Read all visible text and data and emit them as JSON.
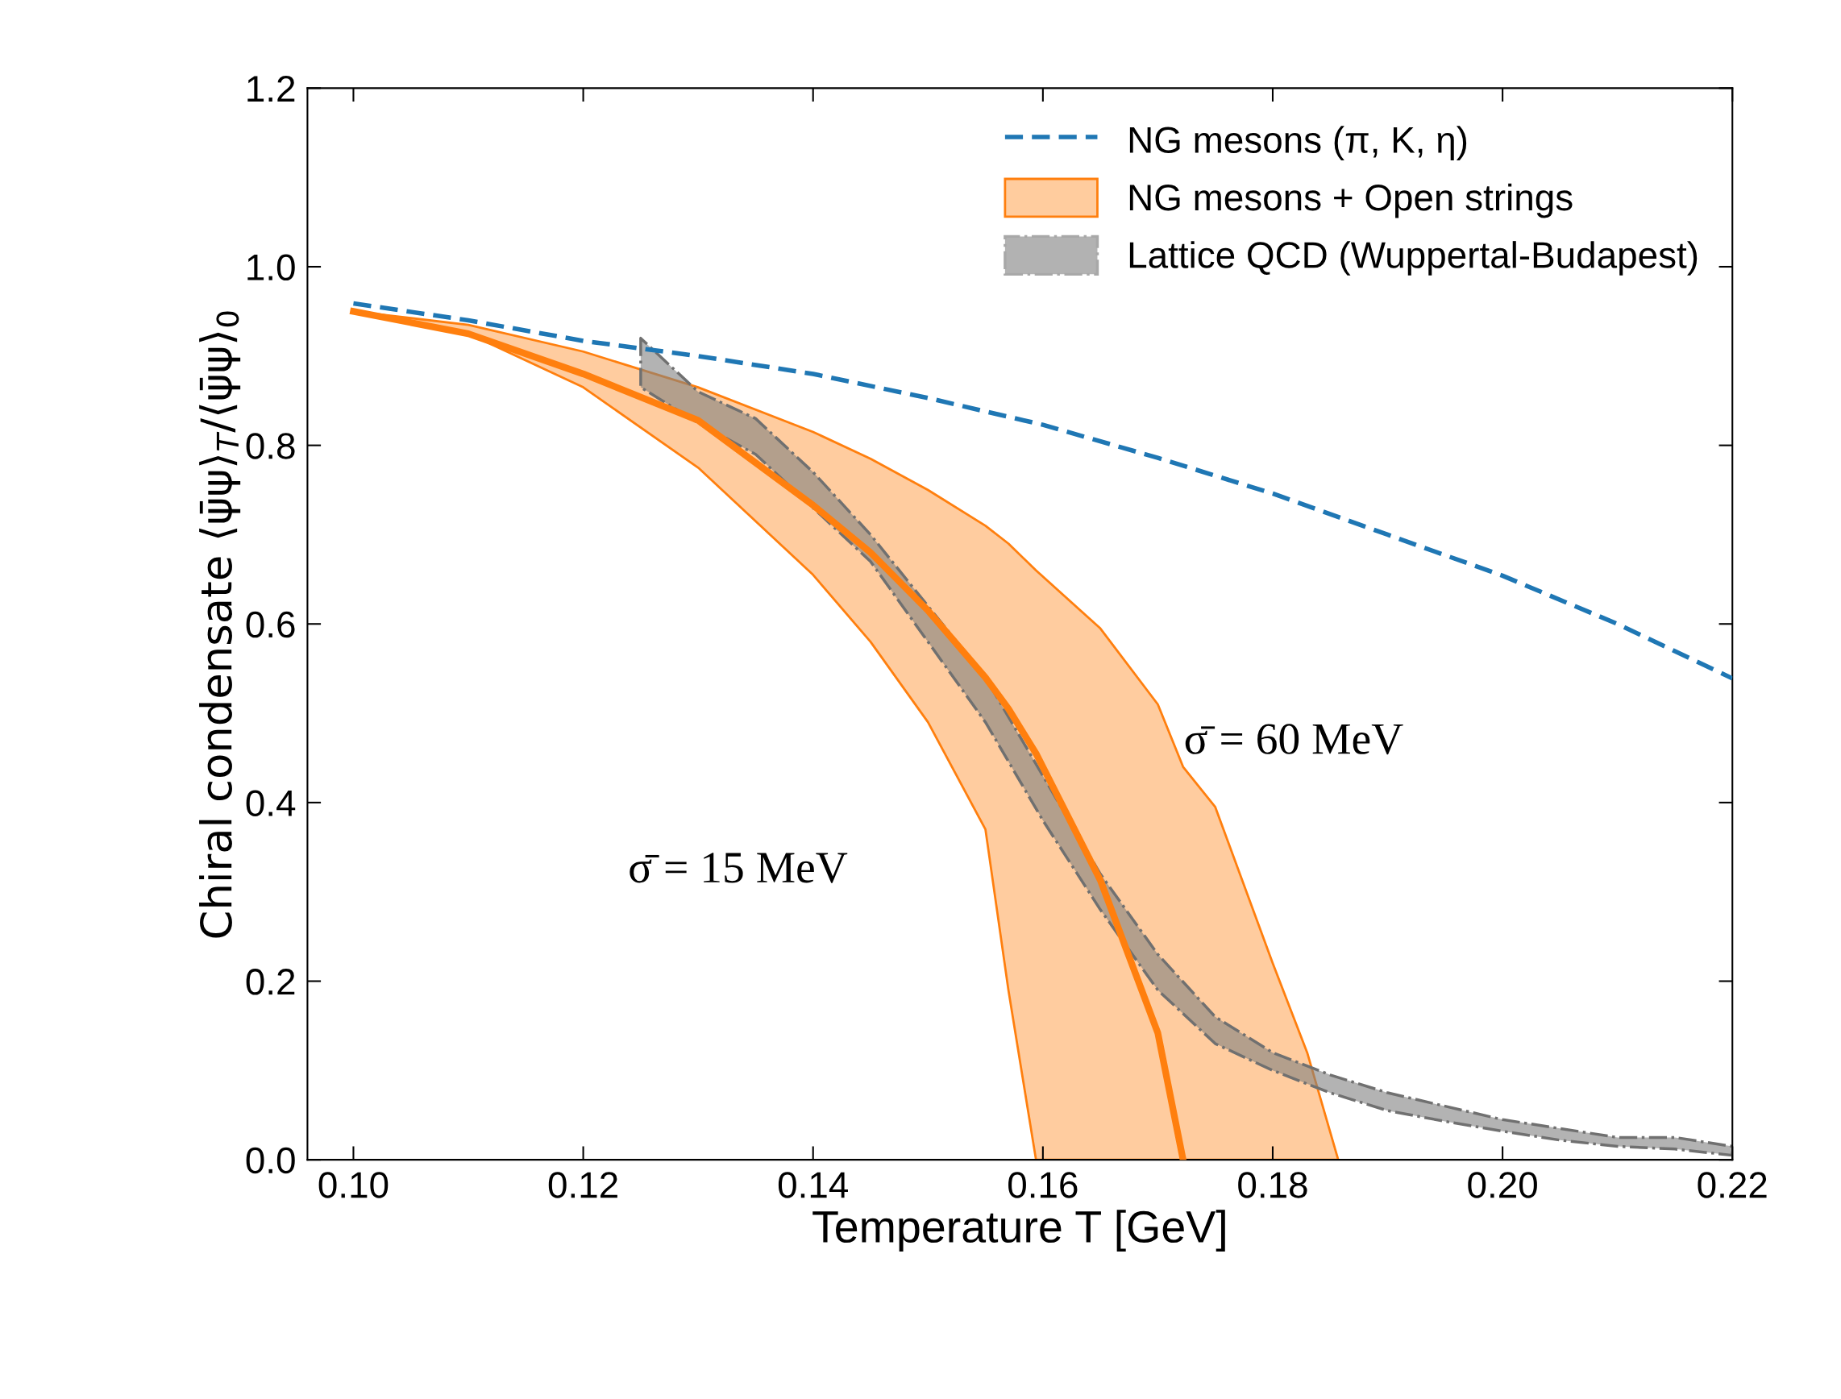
{
  "chart_data": {
    "type": "line",
    "xlabel": "Temperature T [GeV]",
    "ylabel": "Chiral condensate ⟨ψ̄ψ⟩$_{T}$/⟨ψ̄ψ⟩$_{0}$",
    "xlim": [
      0.096,
      0.22
    ],
    "xticks": [
      {
        "value": 0.1,
        "label": "0.10"
      },
      {
        "value": 0.12,
        "label": "0.12"
      },
      {
        "value": 0.14,
        "label": "0.14"
      },
      {
        "value": 0.16,
        "label": "0.16"
      },
      {
        "value": 0.18,
        "label": "0.18"
      },
      {
        "value": 0.2,
        "label": "0.20"
      },
      {
        "value": 0.22,
        "label": "0.22"
      }
    ],
    "ylim": [
      0,
      1.2
    ],
    "yticks": [
      {
        "value": 0,
        "label": "0.0"
      },
      {
        "value": 0.2,
        "label": "0.2"
      },
      {
        "value": 0.4,
        "label": "0.4"
      },
      {
        "value": 0.6,
        "label": "0.6"
      },
      {
        "value": 0.8,
        "label": "0.8"
      },
      {
        "value": 1.0,
        "label": "1.0"
      },
      {
        "value": 1.2,
        "label": "1.2"
      }
    ],
    "grid": false,
    "legend": "top right",
    "series": [
      {
        "name": "NG mesons (π, K, η)",
        "color": "#1f77b4",
        "line_style": "dashed",
        "x": [
          0.1,
          0.11,
          0.12,
          0.13,
          0.14,
          0.15,
          0.16,
          0.17,
          0.18,
          0.19,
          0.2,
          0.21,
          0.22
        ],
        "values": [
          0.959,
          0.94,
          0.917,
          0.9,
          0.88,
          0.853,
          0.823,
          0.786,
          0.746,
          0.7,
          0.654,
          0.6,
          0.539
        ]
      },
      {
        "name": "NG mesons + Open strings",
        "color": "#ff7f0e",
        "x": [
          0.1,
          0.11,
          0.12,
          0.13,
          0.14,
          0.145,
          0.15,
          0.155,
          0.157,
          0.1594,
          0.165,
          0.17,
          0.1722,
          0.175,
          0.18,
          0.183,
          0.1857
        ],
        "values": [
          0.95,
          0.925,
          0.88,
          0.828,
          0.733,
          0.68,
          0.615,
          0.54,
          0.505,
          0.455,
          0.313,
          0.142,
          0,
          null,
          null,
          null,
          null
        ],
        "lower": [
          0.95,
          0.925,
          0.865,
          0.775,
          0.655,
          0.58,
          0.49,
          0.37,
          0.19,
          0,
          0,
          0,
          0,
          0,
          0,
          0,
          0
        ],
        "upper": [
          0.95,
          0.935,
          0.905,
          0.865,
          0.815,
          0.785,
          0.75,
          0.71,
          0.69,
          0.66,
          0.595,
          0.51,
          0.44,
          0.395,
          0.22,
          0.12,
          0
        ]
      },
      {
        "name": "Lattice QCD (Wuppertal-Budapest)",
        "color": "#808080",
        "line_style": "dashdot",
        "x": [
          0.125,
          0.13,
          0.135,
          0.14,
          0.145,
          0.15,
          0.155,
          0.16,
          0.165,
          0.17,
          0.175,
          0.18,
          0.185,
          0.19,
          0.195,
          0.2,
          0.205,
          0.21,
          0.215,
          0.22
        ],
        "values": [
          null,
          null,
          null,
          null,
          null,
          null,
          null,
          null,
          null,
          null,
          null,
          null,
          null,
          null,
          null,
          null,
          null,
          null,
          null,
          null
        ],
        "lower": [
          0.865,
          0.825,
          0.79,
          0.73,
          0.67,
          0.58,
          0.49,
          0.38,
          0.28,
          0.19,
          0.13,
          0.1,
          0.075,
          0.055,
          0.043,
          0.032,
          0.022,
          0.015,
          0.012,
          0.005
        ],
        "upper": [
          0.92,
          0.86,
          0.83,
          0.77,
          0.7,
          0.62,
          0.54,
          0.43,
          0.32,
          0.23,
          0.16,
          0.12,
          0.095,
          0.075,
          0.06,
          0.045,
          0.035,
          0.025,
          0.025,
          0.015
        ]
      }
    ],
    "annotations": [
      "σ̄ = 15 MeV",
      "σ̄ = 60 MeV"
    ]
  }
}
